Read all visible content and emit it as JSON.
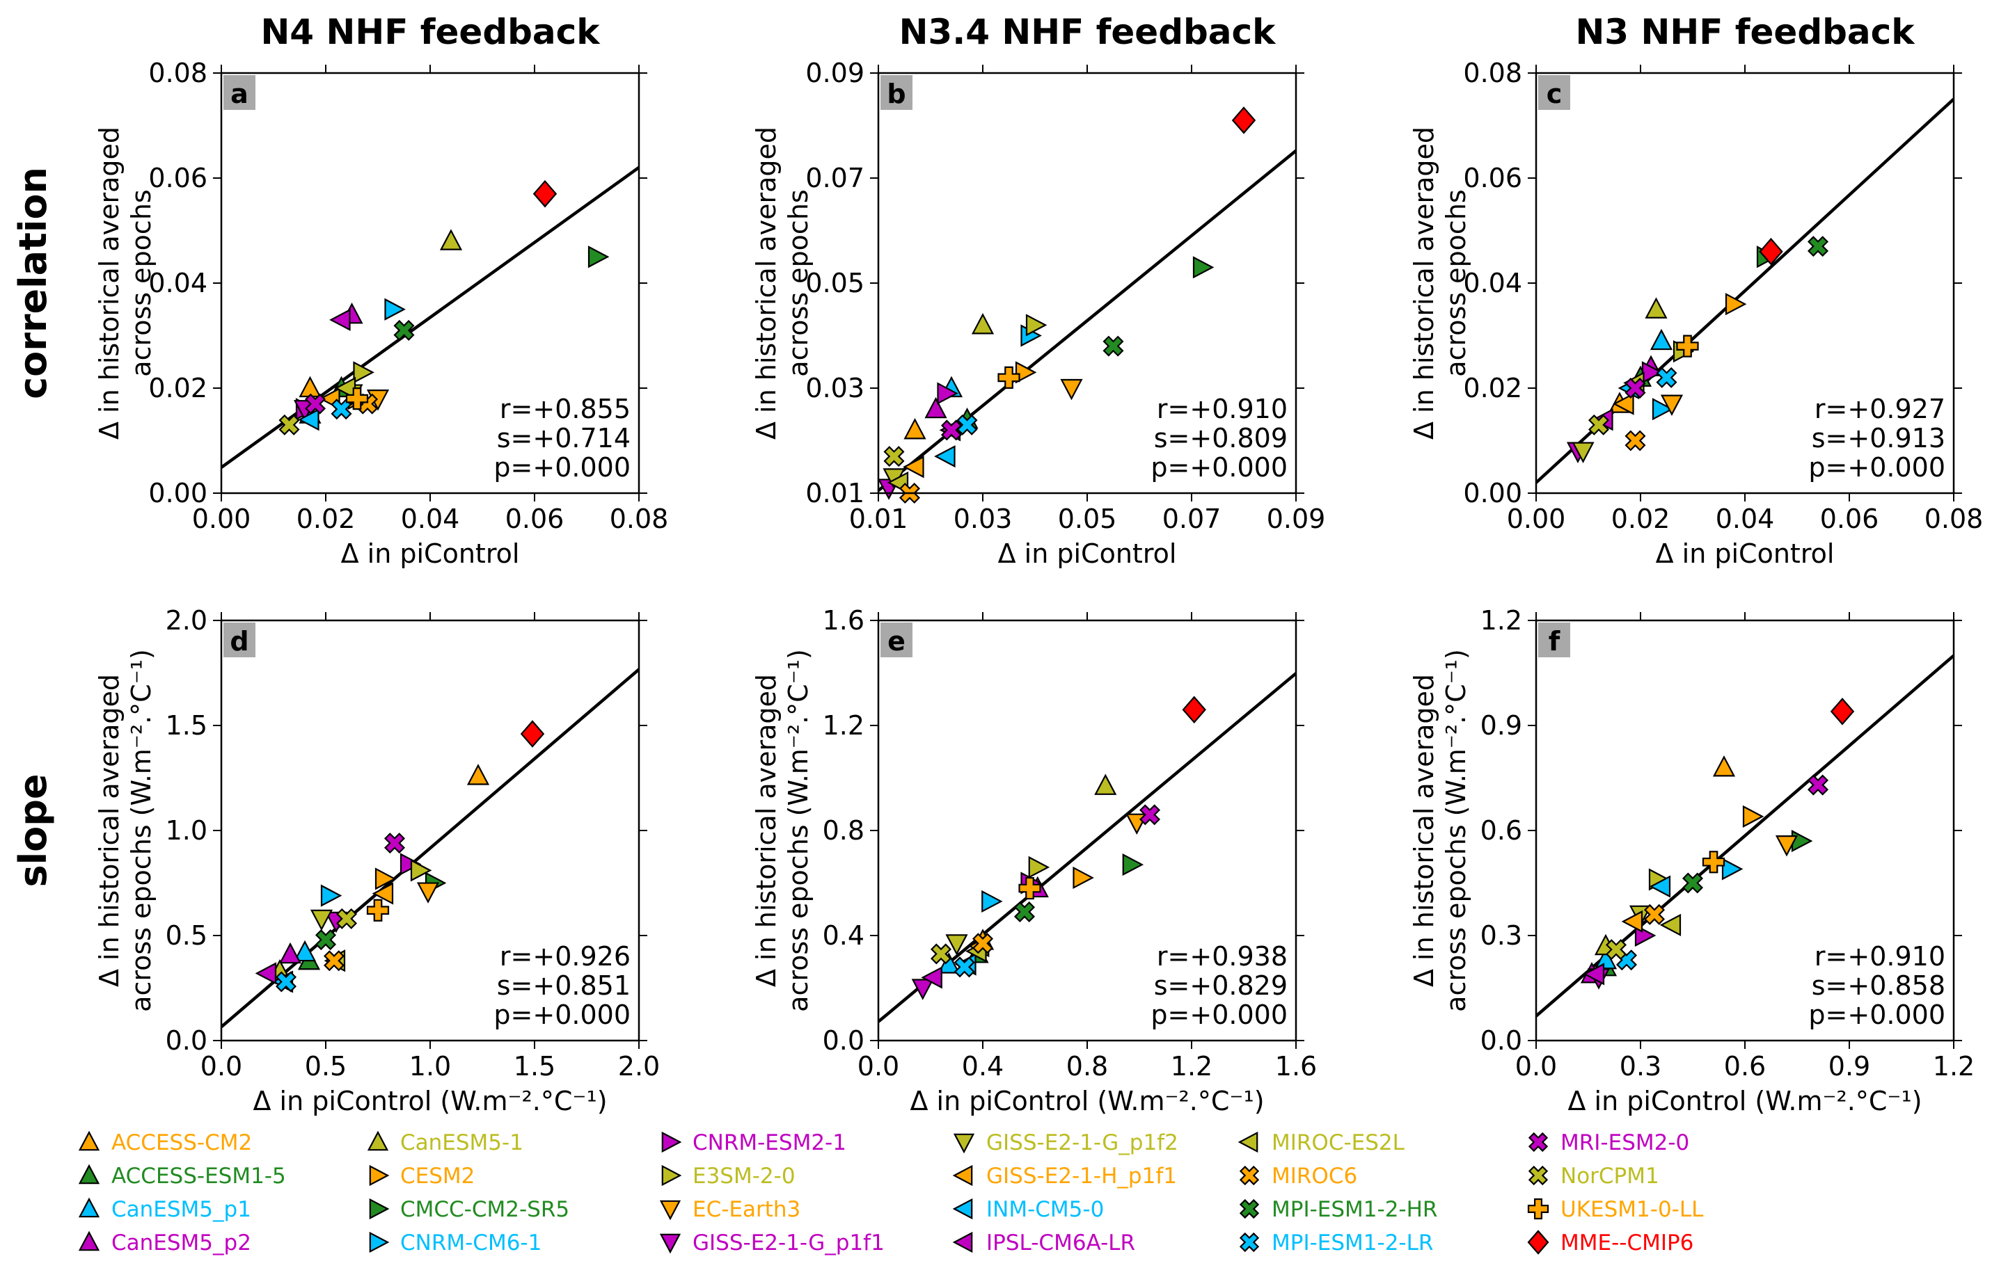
{
  "row_labels": [
    "correlation",
    "slope"
  ],
  "legend": [
    {
      "label": "ACCESS-CM2",
      "color": "#ffa500",
      "marker": "triangle-up"
    },
    {
      "label": "ACCESS-ESM1-5",
      "color": "#228b22",
      "marker": "triangle-up"
    },
    {
      "label": "CanESM5_p1",
      "color": "#00bfff",
      "marker": "triangle-up"
    },
    {
      "label": "CanESM5_p2",
      "color": "#c000c0",
      "marker": "triangle-up"
    },
    {
      "label": "CanESM5-1",
      "color": "#bcbd22",
      "marker": "triangle-up"
    },
    {
      "label": "CESM2",
      "color": "#ffa500",
      "marker": "triangle-right"
    },
    {
      "label": "CMCC-CM2-SR5",
      "color": "#228b22",
      "marker": "triangle-right"
    },
    {
      "label": "CNRM-CM6-1",
      "color": "#00bfff",
      "marker": "triangle-right"
    },
    {
      "label": "CNRM-ESM2-1",
      "color": "#c000c0",
      "marker": "triangle-right"
    },
    {
      "label": "E3SM-2-0",
      "color": "#bcbd22",
      "marker": "triangle-right"
    },
    {
      "label": "EC-Earth3",
      "color": "#ffa500",
      "marker": "triangle-down"
    },
    {
      "label": "GISS-E2-1-G_p1f1",
      "color": "#c000c0",
      "marker": "triangle-down"
    },
    {
      "label": "GISS-E2-1-G_p1f2",
      "color": "#bcbd22",
      "marker": "triangle-down"
    },
    {
      "label": "GISS-E2-1-H_p1f1",
      "color": "#ffa500",
      "marker": "triangle-left"
    },
    {
      "label": "INM-CM5-0",
      "color": "#00bfff",
      "marker": "triangle-left"
    },
    {
      "label": "IPSL-CM6A-LR",
      "color": "#c000c0",
      "marker": "triangle-left"
    },
    {
      "label": "MIROC-ES2L",
      "color": "#bcbd22",
      "marker": "triangle-left"
    },
    {
      "label": "MIROC6",
      "color": "#ffa500",
      "marker": "x"
    },
    {
      "label": "MPI-ESM1-2-HR",
      "color": "#228b22",
      "marker": "x"
    },
    {
      "label": "MPI-ESM1-2-LR",
      "color": "#00bfff",
      "marker": "x"
    },
    {
      "label": "MRI-ESM2-0",
      "color": "#c000c0",
      "marker": "x"
    },
    {
      "label": "NorCPM1",
      "color": "#bcbd22",
      "marker": "x"
    },
    {
      "label": "UKESM1-0-LL",
      "color": "#ffa500",
      "marker": "plus"
    },
    {
      "label": "MME--CMIP6",
      "color": "#ff0000",
      "marker": "diamond"
    }
  ],
  "chart_data": [
    {
      "type": "scatter",
      "panel": "a",
      "title": "N4 NHF feedback",
      "xlabel": "Δ in piControl",
      "ylabel": [
        "Δ in historical averaged",
        "across epochs"
      ],
      "xlim": [
        0,
        0.08
      ],
      "ylim": [
        0,
        0.08
      ],
      "xticks": [
        "0.00",
        "0.02",
        "0.04",
        "0.06",
        "0.08"
      ],
      "yticks": [
        "0.00",
        "0.02",
        "0.04",
        "0.06",
        "0.08"
      ],
      "fit": {
        "intercept": 0.0049,
        "slope": 0.714
      },
      "stats": [
        "r=+0.855",
        "s=+0.714",
        "p=+0.000"
      ],
      "points": [
        [
          0.017,
          0.02
        ],
        [
          0.023,
          0.02
        ],
        [
          0.017,
          0.015
        ],
        [
          0.025,
          0.034
        ],
        [
          0.044,
          0.048
        ],
        [
          0.026,
          0.018
        ],
        [
          0.072,
          0.045
        ],
        [
          0.033,
          0.035
        ],
        [
          0.016,
          0.016
        ],
        [
          0.027,
          0.023
        ],
        [
          0.03,
          0.018
        ],
        [
          0.016,
          0.016
        ],
        [
          0.025,
          0.019
        ],
        [
          0.021,
          0.018
        ],
        [
          0.017,
          0.014
        ],
        [
          0.023,
          0.033
        ],
        [
          0.024,
          0.02
        ],
        [
          0.028,
          0.017
        ],
        [
          0.035,
          0.031
        ],
        [
          0.023,
          0.016
        ],
        [
          0.018,
          0.017
        ],
        [
          0.013,
          0.013
        ],
        [
          0.026,
          0.018
        ],
        [
          0.062,
          0.057
        ]
      ]
    },
    {
      "type": "scatter",
      "panel": "b",
      "title": "N3.4 NHF feedback",
      "xlabel": "Δ in piControl",
      "ylabel": [
        "Δ in historical averaged",
        "across epochs"
      ],
      "xlim": [
        0.01,
        0.09
      ],
      "ylim": [
        0.01,
        0.09
      ],
      "xticks": [
        "0.01",
        "0.03",
        "0.05",
        "0.07",
        "0.09"
      ],
      "yticks": [
        "0.01",
        "0.03",
        "0.05",
        "0.07",
        "0.09"
      ],
      "fit": {
        "intercept": 0.0024,
        "slope": 0.809
      },
      "stats": [
        "r=+0.910",
        "s=+0.809",
        "p=+0.000"
      ],
      "points": [
        [
          0.017,
          0.022
        ],
        [
          0.027,
          0.024
        ],
        [
          0.024,
          0.03
        ],
        [
          0.021,
          0.026
        ],
        [
          0.03,
          0.042
        ],
        [
          0.038,
          0.033
        ],
        [
          0.072,
          0.053
        ],
        [
          0.039,
          0.04
        ],
        [
          0.023,
          0.029
        ],
        [
          0.04,
          0.042
        ],
        [
          0.047,
          0.03
        ],
        [
          0.012,
          0.011
        ],
        [
          0.013,
          0.013
        ],
        [
          0.017,
          0.015
        ],
        [
          0.023,
          0.017
        ],
        [
          0.024,
          0.022
        ],
        [
          0.014,
          0.012
        ],
        [
          0.016,
          0.01
        ],
        [
          0.055,
          0.038
        ],
        [
          0.027,
          0.023
        ],
        [
          0.024,
          0.022
        ],
        [
          0.013,
          0.017
        ],
        [
          0.035,
          0.032
        ],
        [
          0.08,
          0.081
        ]
      ]
    },
    {
      "type": "scatter",
      "panel": "c",
      "title": "N3 NHF feedback",
      "xlabel": "Δ in piControl",
      "ylabel": [
        "Δ in historical averaged",
        "across epochs"
      ],
      "xlim": [
        0,
        0.08
      ],
      "ylim": [
        0,
        0.08
      ],
      "xticks": [
        "0.00",
        "0.02",
        "0.04",
        "0.06",
        "0.08"
      ],
      "yticks": [
        "0.00",
        "0.02",
        "0.04",
        "0.06",
        "0.08"
      ],
      "fit": {
        "intercept": 0.002,
        "slope": 0.913
      },
      "stats": [
        "r=+0.927",
        "s=+0.913",
        "p=+0.000"
      ],
      "points": [
        [
          0.016,
          0.017
        ],
        [
          0.02,
          0.022
        ],
        [
          0.024,
          0.029
        ],
        [
          0.022,
          0.024
        ],
        [
          0.023,
          0.035
        ],
        [
          0.038,
          0.036
        ],
        [
          0.044,
          0.045
        ],
        [
          0.024,
          0.016
        ],
        [
          0.022,
          0.023
        ],
        [
          0.028,
          0.027
        ],
        [
          0.026,
          0.017
        ],
        [
          0.008,
          0.008
        ],
        [
          0.009,
          0.008
        ],
        [
          0.017,
          0.017
        ],
        [
          0.018,
          0.02
        ],
        [
          0.013,
          0.014
        ],
        [
          0.019,
          0.021
        ],
        [
          0.019,
          0.01
        ],
        [
          0.054,
          0.047
        ],
        [
          0.025,
          0.022
        ],
        [
          0.019,
          0.02
        ],
        [
          0.012,
          0.013
        ],
        [
          0.029,
          0.028
        ],
        [
          0.045,
          0.046
        ]
      ]
    },
    {
      "type": "scatter",
      "panel": "d",
      "xlabel": "Δ in piControl (W.m⁻².°C⁻¹)",
      "ylabel": [
        "Δ in historical averaged",
        "across epochs (W.m⁻².°C⁻¹)"
      ],
      "xlim": [
        0,
        2.0
      ],
      "ylim": [
        0,
        2.0
      ],
      "xticks": [
        "0.0",
        "0.5",
        "1.0",
        "1.5",
        "2.0"
      ],
      "yticks": [
        "0.0",
        "0.5",
        "1.0",
        "1.5",
        "2.0"
      ],
      "fit": {
        "intercept": 0.065,
        "slope": 0.851
      },
      "stats": [
        "r=+0.926",
        "s=+0.851",
        "p=+0.000"
      ],
      "points": [
        [
          1.23,
          1.26
        ],
        [
          0.42,
          0.38
        ],
        [
          0.4,
          0.42
        ],
        [
          0.33,
          0.41
        ],
        [
          0.28,
          0.33
        ],
        [
          0.78,
          0.77
        ],
        [
          1.02,
          0.75
        ],
        [
          0.52,
          0.69
        ],
        [
          0.9,
          0.84
        ],
        [
          0.95,
          0.81
        ],
        [
          0.99,
          0.71
        ],
        [
          0.55,
          0.57
        ],
        [
          0.48,
          0.58
        ],
        [
          0.78,
          0.7
        ],
        [
          0.3,
          0.28
        ],
        [
          0.22,
          0.32
        ],
        [
          0.55,
          0.38
        ],
        [
          0.54,
          0.38
        ],
        [
          0.5,
          0.48
        ],
        [
          0.31,
          0.28
        ],
        [
          0.83,
          0.94
        ],
        [
          0.6,
          0.58
        ],
        [
          0.75,
          0.62
        ],
        [
          1.49,
          1.46
        ]
      ]
    },
    {
      "type": "scatter",
      "panel": "e",
      "xlabel": "Δ in piControl (W.m⁻².°C⁻¹)",
      "ylabel": [
        "Δ in historical averaged",
        "across epochs (W.m⁻².°C⁻¹)"
      ],
      "xlim": [
        0,
        1.6
      ],
      "ylim": [
        0,
        1.6
      ],
      "xticks": [
        "0.0",
        "0.4",
        "0.8",
        "1.2",
        "1.6"
      ],
      "yticks": [
        "0.0",
        "0.4",
        "0.8",
        "1.2",
        "1.6"
      ],
      "fit": {
        "intercept": 0.072,
        "slope": 0.829
      },
      "stats": [
        "r=+0.938",
        "s=+0.829",
        "p=+0.000"
      ],
      "points": [
        [
          0.4,
          0.38
        ],
        [
          0.38,
          0.33
        ],
        [
          0.27,
          0.29
        ],
        [
          0.61,
          0.58
        ],
        [
          0.87,
          0.97
        ],
        [
          0.78,
          0.62
        ],
        [
          0.97,
          0.67
        ],
        [
          0.43,
          0.53
        ],
        [
          0.58,
          0.6
        ],
        [
          0.61,
          0.66
        ],
        [
          0.99,
          0.83
        ],
        [
          0.17,
          0.2
        ],
        [
          0.3,
          0.37
        ],
        [
          0.39,
          0.36
        ],
        [
          0.34,
          0.29
        ],
        [
          0.21,
          0.24
        ],
        [
          0.38,
          0.34
        ],
        [
          0.4,
          0.37
        ],
        [
          0.56,
          0.49
        ],
        [
          0.33,
          0.28
        ],
        [
          1.04,
          0.86
        ],
        [
          0.24,
          0.33
        ],
        [
          0.58,
          0.58
        ],
        [
          1.21,
          1.26
        ]
      ]
    },
    {
      "type": "scatter",
      "panel": "f",
      "xlabel": "Δ in piControl (W.m⁻².°C⁻¹)",
      "ylabel": [
        "Δ in historical averaged",
        "across epochs (W.m⁻².°C⁻¹)"
      ],
      "xlim": [
        0,
        1.2
      ],
      "ylim": [
        0,
        1.2
      ],
      "xticks": [
        "0.0",
        "0.3",
        "0.6",
        "0.9",
        "1.2"
      ],
      "yticks": [
        "0.0",
        "0.3",
        "0.6",
        "0.9",
        "1.2"
      ],
      "fit": {
        "intercept": 0.07,
        "slope": 0.858
      },
      "stats": [
        "r=+0.910",
        "s=+0.858",
        "p=+0.000"
      ],
      "points": [
        [
          0.54,
          0.78
        ],
        [
          0.2,
          0.21
        ],
        [
          0.2,
          0.23
        ],
        [
          0.16,
          0.19
        ],
        [
          0.2,
          0.27
        ],
        [
          0.62,
          0.64
        ],
        [
          0.76,
          0.57
        ],
        [
          0.56,
          0.49
        ],
        [
          0.31,
          0.3
        ],
        [
          0.35,
          0.46
        ],
        [
          0.72,
          0.56
        ],
        [
          0.18,
          0.18
        ],
        [
          0.3,
          0.36
        ],
        [
          0.28,
          0.34
        ],
        [
          0.36,
          0.44
        ],
        [
          0.17,
          0.19
        ],
        [
          0.39,
          0.33
        ],
        [
          0.34,
          0.36
        ],
        [
          0.45,
          0.45
        ],
        [
          0.26,
          0.23
        ],
        [
          0.81,
          0.73
        ],
        [
          0.23,
          0.26
        ],
        [
          0.51,
          0.51
        ],
        [
          0.88,
          0.94
        ]
      ]
    }
  ]
}
